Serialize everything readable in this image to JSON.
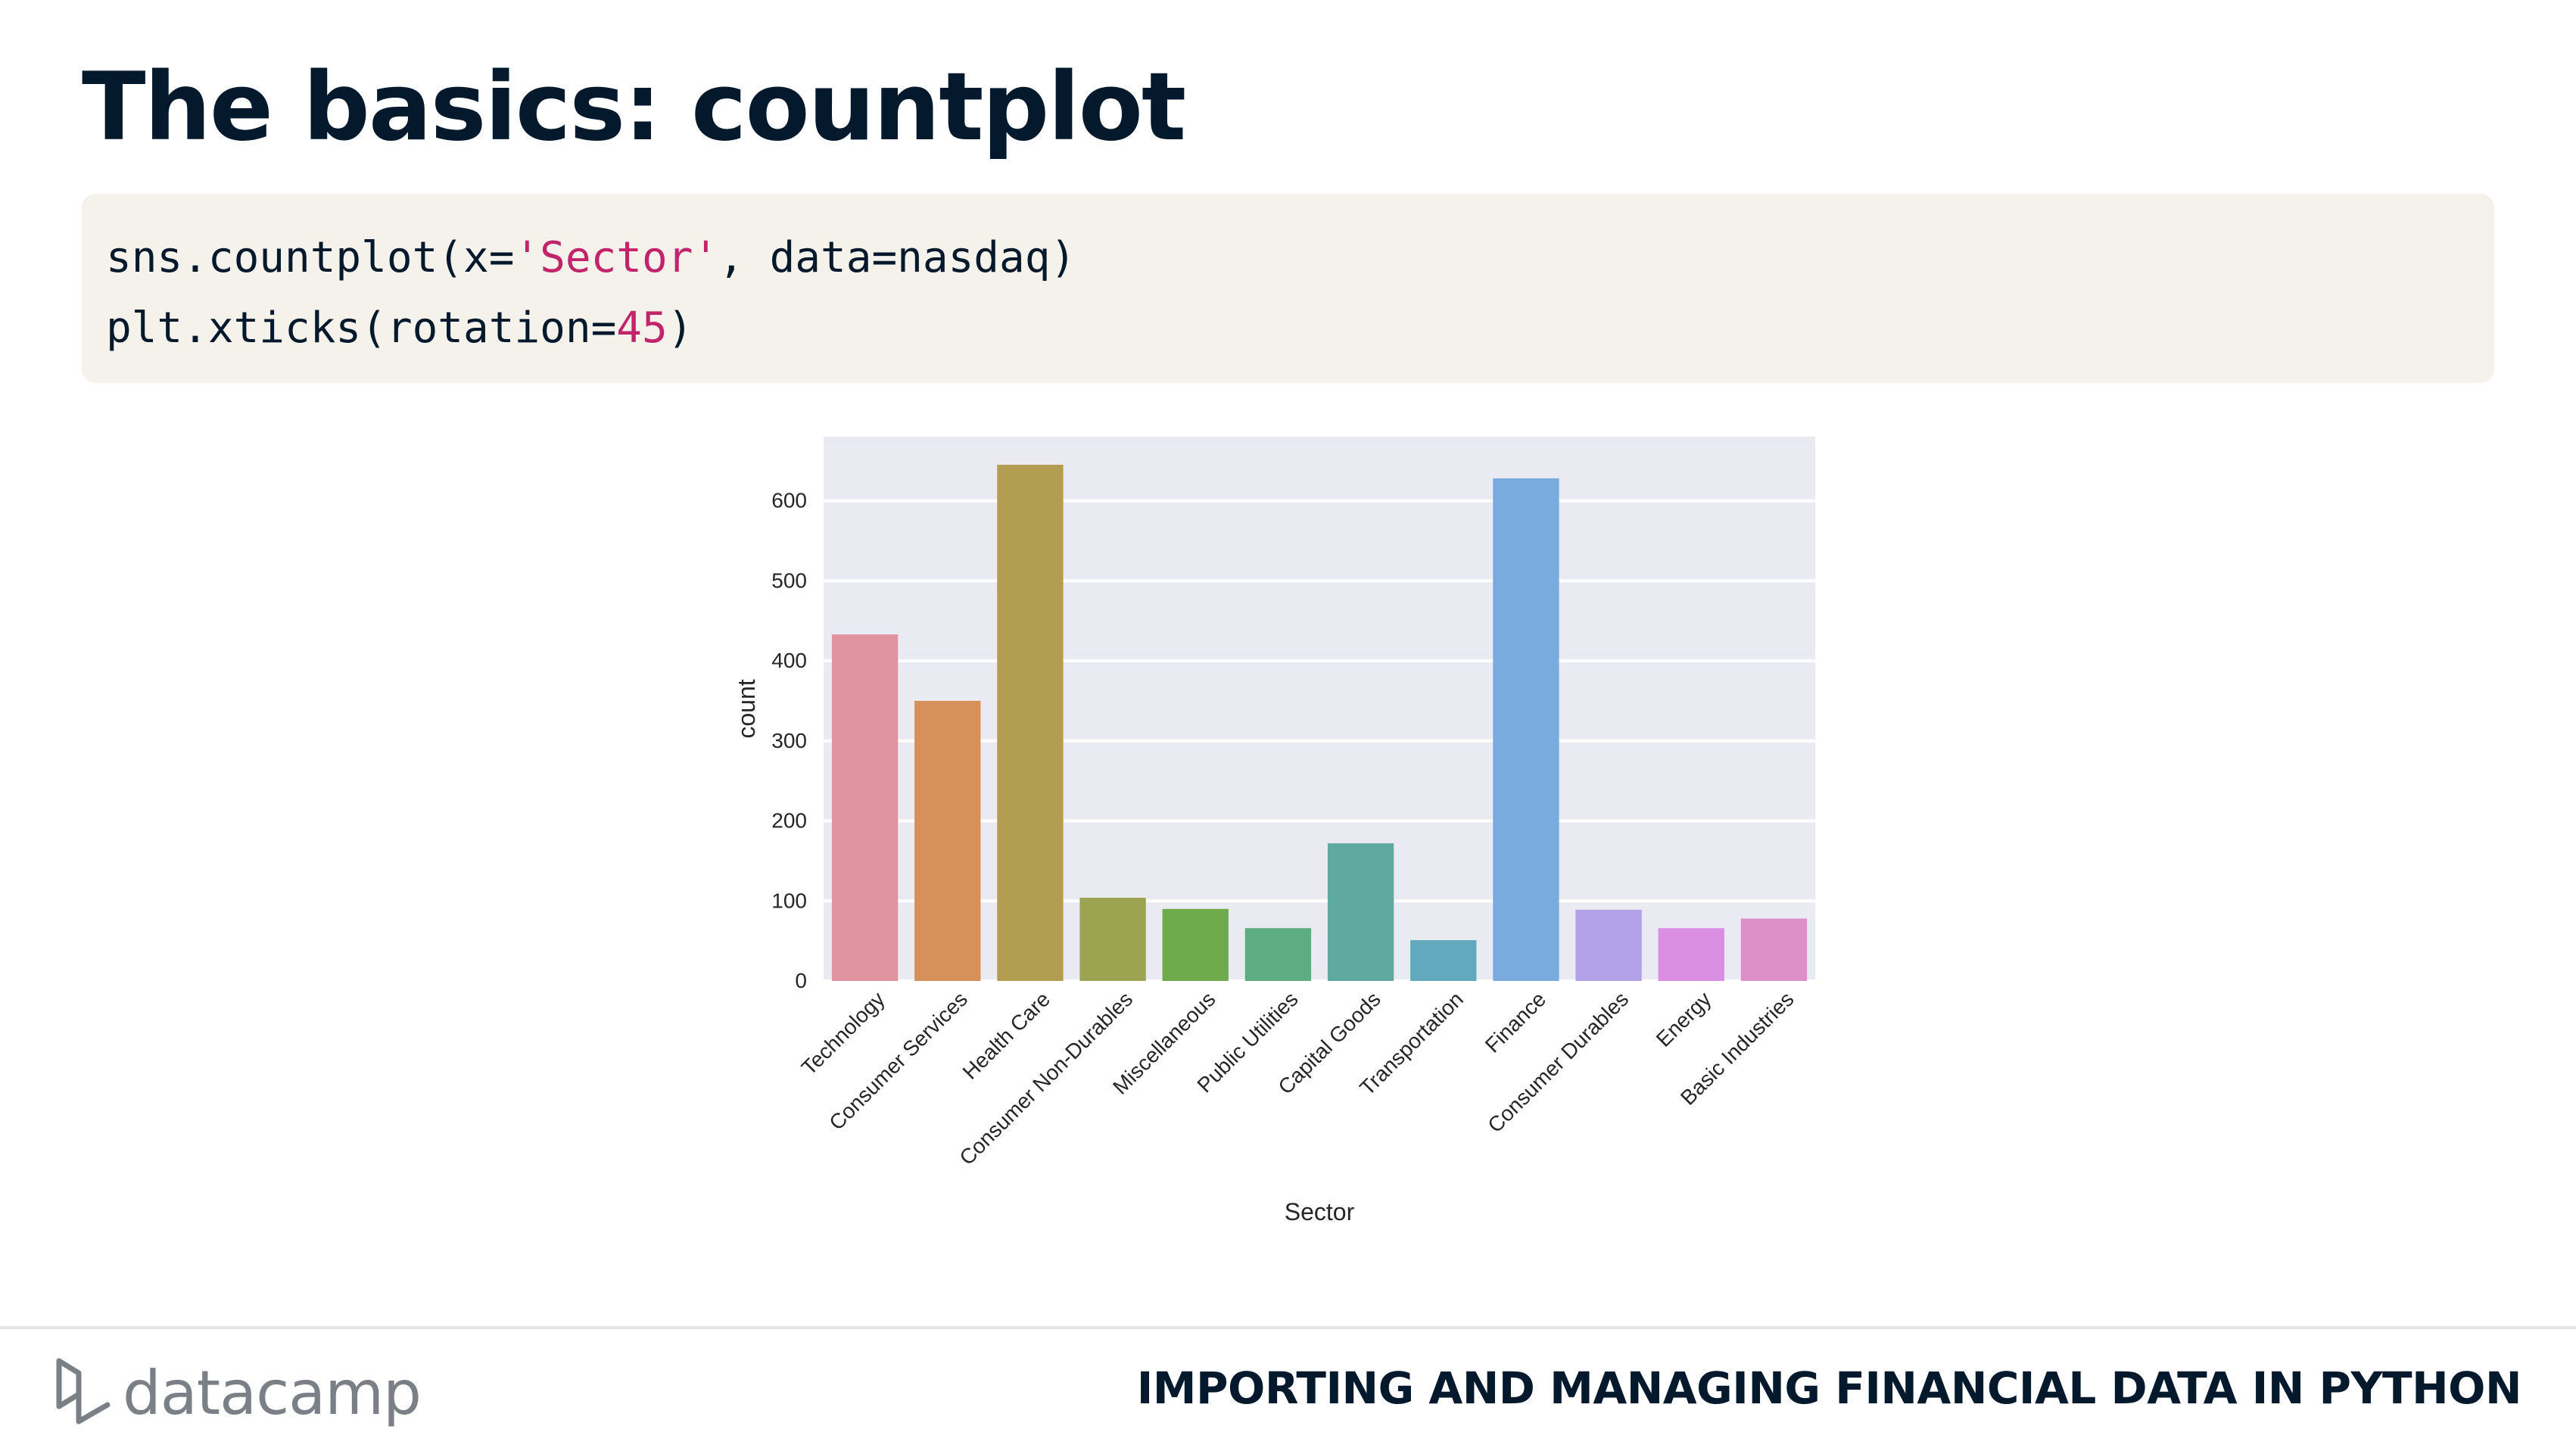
{
  "slide": {
    "title": "The basics: countplot",
    "course_title": "IMPORTING AND MANAGING FINANCIAL DATA IN PYTHON",
    "logo_text": "datacamp"
  },
  "code": {
    "line1": {
      "pre": "sns.countplot(x=",
      "str": "'Sector'",
      "post": ", data=nasdaq)"
    },
    "line2": {
      "pre": "plt.xticks(rotation=",
      "num": "45",
      "post": ")"
    }
  },
  "chart_data": {
    "type": "bar",
    "title": "",
    "xlabel": "Sector",
    "ylabel": "count",
    "ylim": [
      0,
      680
    ],
    "yticks": [
      0,
      100,
      200,
      300,
      400,
      500,
      600
    ],
    "grid": true,
    "categories": [
      "Technology",
      "Consumer Services",
      "Health Care",
      "Consumer Non-Durables",
      "Miscellaneous",
      "Public Utilities",
      "Capital Goods",
      "Transportation",
      "Finance",
      "Consumer Durables",
      "Energy",
      "Basic Industries"
    ],
    "values": [
      433,
      350,
      645,
      104,
      90,
      66,
      172,
      51,
      628,
      89,
      66,
      78
    ],
    "colors": [
      "#e0939e",
      "#d6915a",
      "#b39d51",
      "#9ca351",
      "#6fab4b",
      "#5eac82",
      "#5fa9a1",
      "#63a9bd",
      "#79abdf",
      "#b2a1e6",
      "#d98ee4",
      "#dd8fc7"
    ],
    "background_color": "#eaeaf2",
    "grid_color": "#ffffff"
  }
}
